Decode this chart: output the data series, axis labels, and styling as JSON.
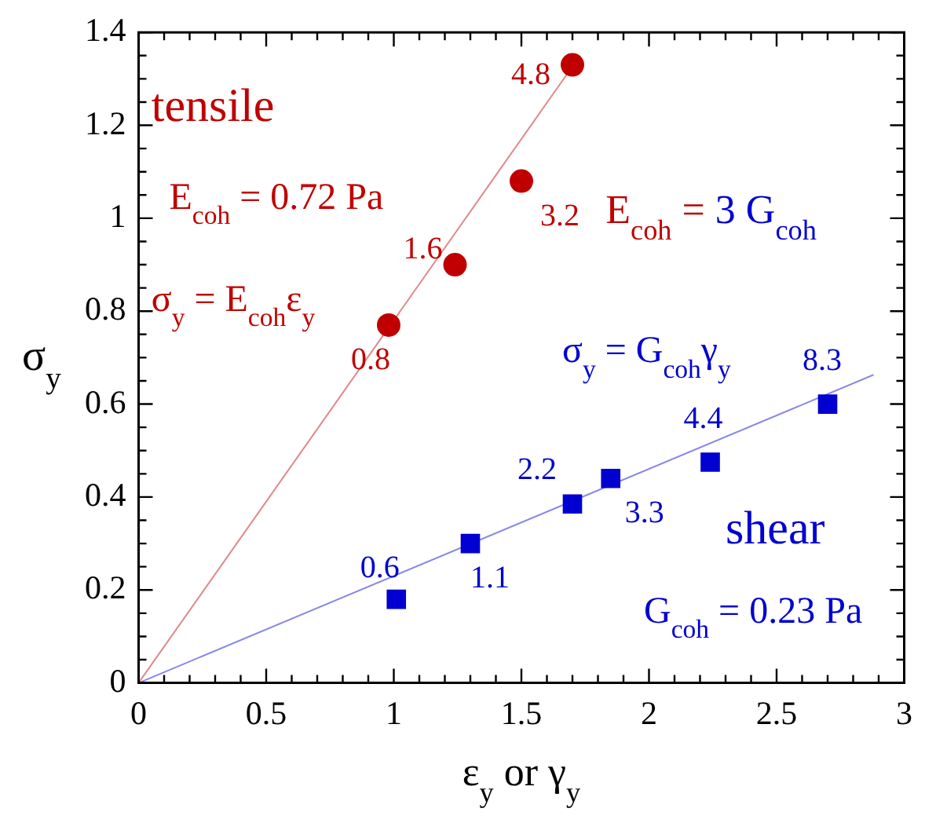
{
  "chart_data": {
    "type": "scatter",
    "xlabel": "ε$_{y}$ or γ$_{y}$",
    "ylabel": "σ$_{y}$",
    "xlim": [
      0,
      3
    ],
    "ylim": [
      0,
      1.4
    ],
    "xticks": [
      0,
      {
        "value": 0.1,
        "label": null
      },
      {
        "value": 0.2,
        "label": null
      },
      {
        "value": 0.3,
        "label": null
      },
      {
        "value": 0.4,
        "label": null
      },
      0.5,
      {
        "value": 0.6,
        "label": null
      },
      {
        "value": 0.7,
        "label": null
      },
      {
        "value": 0.8,
        "label": null
      },
      {
        "value": 0.9,
        "label": null
      },
      1,
      {
        "value": 1.1,
        "label": null
      },
      {
        "value": 1.2,
        "label": null
      },
      {
        "value": 1.3,
        "label": null
      },
      {
        "value": 1.4,
        "label": null
      },
      1.5,
      {
        "value": 1.6,
        "label": null
      },
      {
        "value": 1.7,
        "label": null
      },
      {
        "value": 1.8,
        "label": null
      },
      {
        "value": 1.9,
        "label": null
      },
      2,
      {
        "value": 2.1,
        "label": null
      },
      {
        "value": 2.2,
        "label": null
      },
      {
        "value": 2.3,
        "label": null
      },
      {
        "value": 2.4,
        "label": null
      },
      2.5,
      {
        "value": 2.6,
        "label": null
      },
      {
        "value": 2.7,
        "label": null
      },
      {
        "value": 2.8,
        "label": null
      },
      {
        "value": 2.9,
        "label": null
      },
      3
    ],
    "yticks": [
      0,
      {
        "value": 0.05,
        "label": null
      },
      {
        "value": 0.1,
        "label": null
      },
      {
        "value": 0.15,
        "label": null
      },
      0.2,
      {
        "value": 0.25,
        "label": null
      },
      {
        "value": 0.3,
        "label": null
      },
      {
        "value": 0.35,
        "label": null
      },
      0.4,
      {
        "value": 0.45,
        "label": null
      },
      {
        "value": 0.5,
        "label": null
      },
      {
        "value": 0.55,
        "label": null
      },
      0.6,
      {
        "value": 0.65,
        "label": null
      },
      {
        "value": 0.7,
        "label": null
      },
      {
        "value": 0.75,
        "label": null
      },
      0.8,
      {
        "value": 0.85,
        "label": null
      },
      {
        "value": 0.9,
        "label": null
      },
      {
        "value": 0.95,
        "label": null
      },
      1,
      {
        "value": 1.05,
        "label": null
      },
      {
        "value": 1.1,
        "label": null
      },
      {
        "value": 1.15,
        "label": null
      },
      1.2,
      {
        "value": 1.25,
        "label": null
      },
      {
        "value": 1.3,
        "label": null
      },
      {
        "value": 1.35,
        "label": null
      },
      1.4
    ],
    "grid": false,
    "legend": false,
    "series": [
      {
        "marker": "circle",
        "color": "#c00000",
        "x": [
          0.98,
          1.24,
          1.5,
          1.7
        ],
        "values": [
          0.77,
          0.9,
          1.08,
          1.33
        ]
      },
      {
        "marker": "square",
        "color": "#0000d0",
        "x": [
          1.01,
          1.3,
          1.7,
          1.85,
          2.24,
          2.7
        ],
        "values": [
          0.18,
          0.3,
          0.385,
          0.44,
          0.475,
          0.6
        ]
      },
      {
        "type": "line",
        "marker": "none",
        "color": "#e08888",
        "x": [
          0,
          1.73
        ],
        "values": [
          0,
          1.35
        ]
      },
      {
        "type": "line",
        "marker": "none",
        "color": "#8888e8",
        "x": [
          0,
          2.88
        ],
        "values": [
          0,
          0.663
        ]
      }
    ],
    "annotations": [
      "tensile",
      "E$_{coh}$ = 0.72 Pa",
      "σ$_{y}$ = E$_{coh}$ε$_{y}$",
      "E$_{coh}$ = 3 G$_{coh}$",
      "σ$_{y}$ = G$_{coh}$γ$_{y}$",
      "shear",
      "G$_{coh}$ = 0.23 Pa",
      {
        "text": "0.8",
        "x": 0.98,
        "y": 0.77
      },
      {
        "text": "1.6",
        "x": 1.24,
        "y": 0.9
      },
      {
        "text": "3.2",
        "x": 1.5,
        "y": 1.08
      },
      {
        "text": "4.8",
        "x": 1.7,
        "y": 1.33
      },
      {
        "text": "0.6",
        "x": 1.01,
        "y": 0.18
      },
      {
        "text": "1.1",
        "x": 1.3,
        "y": 0.3
      },
      {
        "text": "2.2",
        "x": 1.7,
        "y": 0.385
      },
      {
        "text": "3.3",
        "x": 1.85,
        "y": 0.44
      },
      {
        "text": "4.4",
        "x": 2.24,
        "y": 0.475
      },
      {
        "text": "8.3",
        "x": 2.7,
        "y": 0.6
      }
    ]
  }
}
